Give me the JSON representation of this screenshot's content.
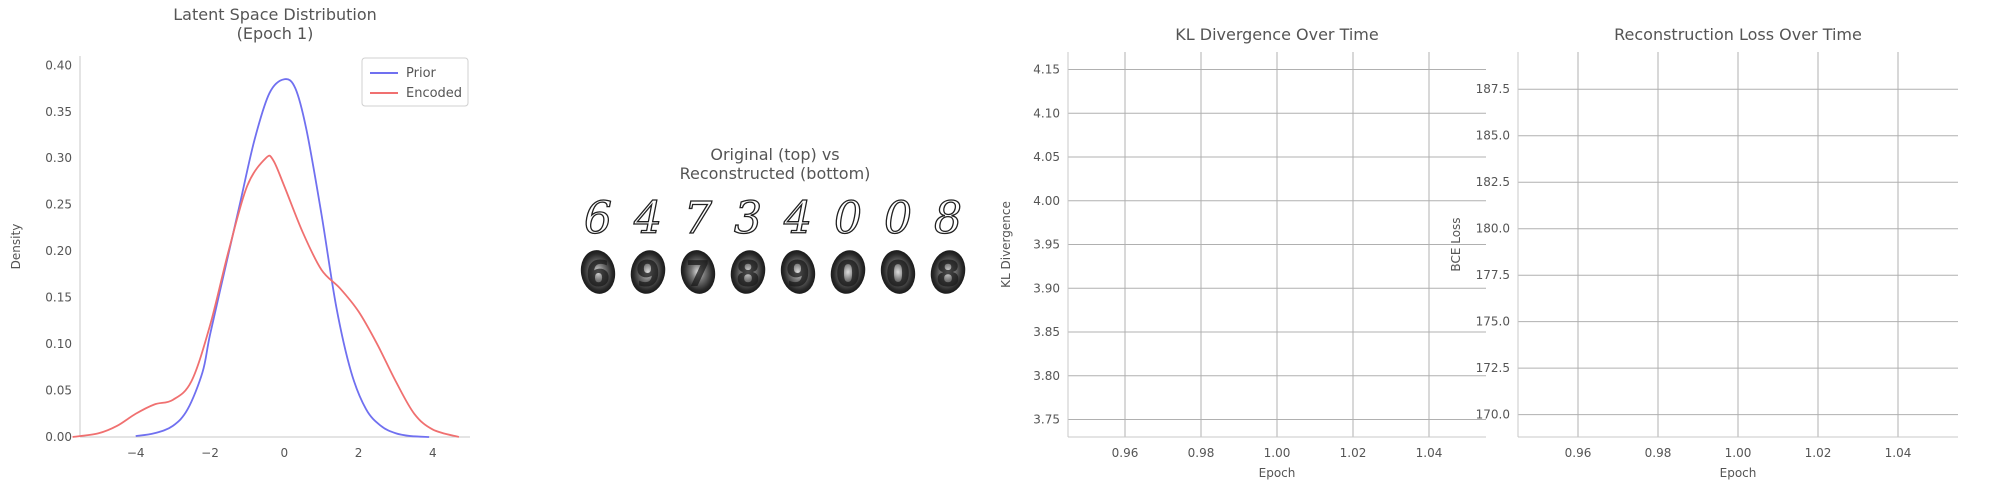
{
  "chart_data": [
    {
      "type": "line",
      "title": "Latent Space Distribution\n(Epoch 1)",
      "xlabel": "",
      "ylabel": "Density",
      "xlim": [
        -5.5,
        5
      ],
      "ylim": [
        0,
        0.41
      ],
      "xticks": [
        -4,
        -2,
        0,
        2,
        4
      ],
      "xtick_labels": [
        "−4",
        "−2",
        "0",
        "2",
        "4"
      ],
      "yticks": [
        0,
        0.05,
        0.1,
        0.15,
        0.2,
        0.25,
        0.3,
        0.35,
        0.4
      ],
      "ytick_labels": [
        "0.00",
        "0.05",
        "0.10",
        "0.15",
        "0.20",
        "0.25",
        "0.30",
        "0.35",
        "0.40"
      ],
      "grid": false,
      "legend_position": "top-right",
      "series": [
        {
          "name": "Prior",
          "color": "#7070f0",
          "x": [
            -4,
            -3.5,
            -3,
            -2.6,
            -2.2,
            -2,
            -1.6,
            -1.2,
            -0.8,
            -0.4,
            0,
            0.3,
            0.6,
            1.0,
            1.4,
            1.8,
            2.2,
            2.6,
            3.0,
            3.4,
            3.9
          ],
          "y": [
            0.001,
            0.004,
            0.012,
            0.03,
            0.07,
            0.11,
            0.18,
            0.25,
            0.32,
            0.37,
            0.385,
            0.375,
            0.33,
            0.24,
            0.14,
            0.07,
            0.03,
            0.012,
            0.004,
            0.001,
            0.0
          ]
        },
        {
          "name": "Encoded",
          "color": "#f07070",
          "x": [
            -5.7,
            -5.0,
            -4.5,
            -4.0,
            -3.5,
            -3.0,
            -2.5,
            -2.0,
            -1.5,
            -1.0,
            -0.5,
            -0.3,
            0.0,
            0.5,
            1.0,
            1.5,
            2.0,
            2.5,
            3.0,
            3.5,
            4.0,
            4.7
          ],
          "y": [
            0.0,
            0.004,
            0.012,
            0.025,
            0.035,
            0.04,
            0.06,
            0.12,
            0.2,
            0.27,
            0.3,
            0.298,
            0.27,
            0.22,
            0.18,
            0.16,
            0.135,
            0.1,
            0.06,
            0.025,
            0.008,
            0.0
          ]
        }
      ]
    },
    {
      "type": "image_grid",
      "title": "Original (top) vs\nReconstructed (bottom)",
      "top_row": [
        "6",
        "4",
        "7",
        "3",
        "4",
        "0",
        "0",
        "8"
      ],
      "bottom_row": [
        "6",
        "9",
        "7",
        "8",
        "9",
        "0",
        "0",
        "8"
      ]
    },
    {
      "type": "line",
      "title": "KL Divergence Over Time",
      "xlabel": "Epoch",
      "ylabel": "KL Divergence",
      "xlim": [
        0.945,
        1.055
      ],
      "ylim": [
        3.73,
        4.17
      ],
      "xticks": [
        0.96,
        0.98,
        1.0,
        1.02,
        1.04
      ],
      "xtick_labels": [
        "0.96",
        "0.98",
        "1.00",
        "1.02",
        "1.04"
      ],
      "yticks": [
        3.75,
        3.8,
        3.85,
        3.9,
        3.95,
        4.0,
        4.05,
        4.1,
        4.15
      ],
      "ytick_labels": [
        "3.75",
        "3.80",
        "3.85",
        "3.90",
        "3.95",
        "4.00",
        "4.05",
        "4.10",
        "4.15"
      ],
      "grid": true,
      "series": []
    },
    {
      "type": "line",
      "title": "Reconstruction Loss Over Time",
      "xlabel": "Epoch",
      "ylabel": "BCE Loss",
      "xlim": [
        0.945,
        1.055
      ],
      "ylim": [
        168.8,
        189.5
      ],
      "xticks": [
        0.96,
        0.98,
        1.0,
        1.02,
        1.04
      ],
      "xtick_labels": [
        "0.96",
        "0.98",
        "1.00",
        "1.02",
        "1.04"
      ],
      "yticks": [
        170.0,
        172.5,
        175.0,
        177.5,
        180.0,
        182.5,
        185.0,
        187.5
      ],
      "ytick_labels": [
        "170.0",
        "172.5",
        "175.0",
        "177.5",
        "180.0",
        "182.5",
        "185.0",
        "187.5"
      ],
      "grid": true,
      "series": []
    }
  ]
}
